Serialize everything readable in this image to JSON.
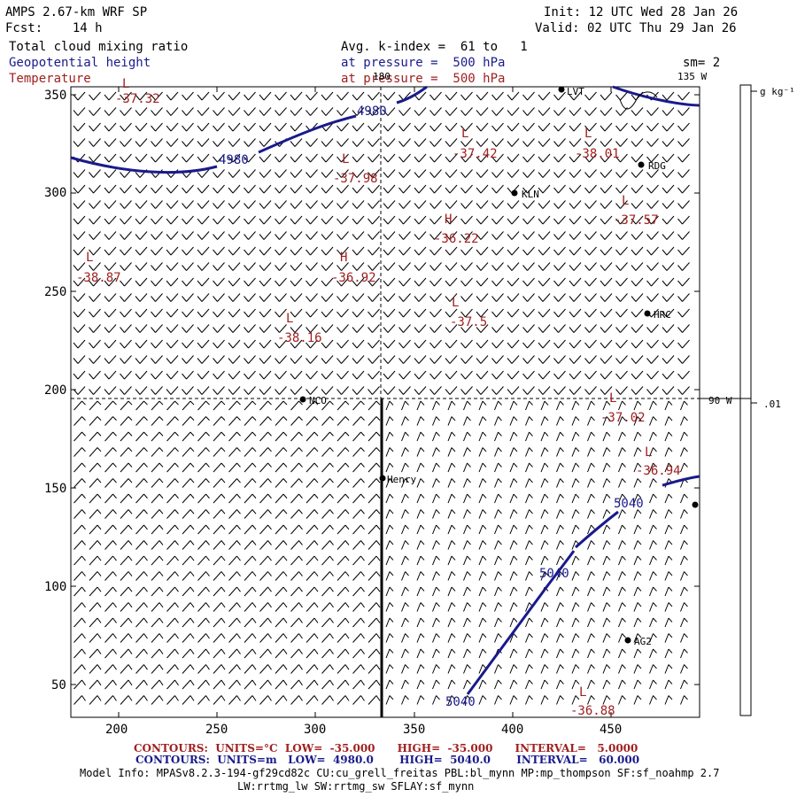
{
  "header": {
    "title": "AMPS 2.67-km WRF SP",
    "fcst": "Fcst:    14 h",
    "init": "Init: 12 UTC Wed 28 Jan 26",
    "valid": "Valid: 02 UTC Thu 29 Jan 26",
    "field1": "Total cloud mixing ratio",
    "field2": "Geopotential height",
    "field3": "Temperature",
    "avg": "Avg. k-index =  61 to   1",
    "press1": "at pressure =  500 hPa",
    "press2": "at pressure =  500 hPa",
    "sm": "sm= 2"
  },
  "colors": {
    "height": "#1a1a8c",
    "temp": "#a02020",
    "grid": "#000000"
  },
  "axes": {
    "x_ticks": [
      "200",
      "250",
      "300",
      "350",
      "400",
      "450"
    ],
    "y_ticks": [
      "350",
      "300",
      "250",
      "200",
      "150",
      "100",
      "50"
    ]
  },
  "meridians": {
    "m180": "180",
    "m135": "135 W",
    "m90": "90 W"
  },
  "colorbar": {
    "unit": "g kg⁻¹",
    "value": ".01"
  },
  "height_labels": [
    "4980",
    "4980",
    "5040",
    "5040",
    "5040"
  ],
  "temp_extrema": [
    {
      "type": "L",
      "value": "-37.32"
    },
    {
      "type": "L",
      "value": "-37.42"
    },
    {
      "type": "L",
      "value": "-38.01"
    },
    {
      "type": "L",
      "value": "-37.98"
    },
    {
      "type": "L",
      "value": "-37.57"
    },
    {
      "type": "H",
      "value": "-36.22"
    },
    {
      "type": "L",
      "value": "-38.87"
    },
    {
      "type": "H",
      "value": "-36.92"
    },
    {
      "type": "L",
      "value": "-37.5"
    },
    {
      "type": "L",
      "value": "-38.16"
    },
    {
      "type": "L",
      "value": "-37.02"
    },
    {
      "type": "L",
      "value": "-36.94"
    },
    {
      "type": "L",
      "value": "-36.88"
    }
  ],
  "stations": [
    "LVT",
    "RDG",
    "KLN",
    "HRC",
    "NCO",
    "Henry",
    "AG2",
    ""
  ],
  "footer": {
    "c1_label": "CONTOURS:  UNITS=°C  LOW=  -35.000      HIGH=  -35.000      INTERVAL=   5.0000",
    "c2_label": "CONTOURS:  UNITS=m   LOW=  4980.0       HIGH=  5040.0       INTERVAL=   60.000",
    "model1": "Model Info: MPASv8.2.3-194-gf29cd82c CU:cu_grell_freitas PBL:bl_mynn MP:mp_thompson SF:sf_noahmp 2.7",
    "model2": "LW:rrtmg_lw SW:rrtmg_sw SFLAY:sf_mynn"
  }
}
